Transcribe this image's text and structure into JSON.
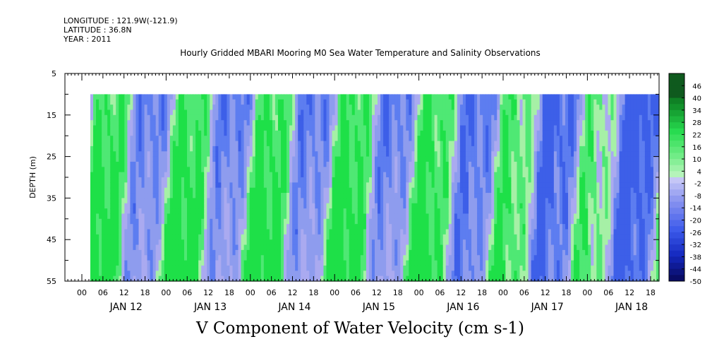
{
  "header": {
    "longitude": "LONGITUDE : 121.9W(-121.9)",
    "latitude": "LATITUDE : 36.8N",
    "year": "YEAR : 2011",
    "title": "Hourly Gridded MBARI Mooring M0 Sea Water Temperature and Salinity Observations"
  },
  "chart_data": {
    "type": "heatmap",
    "title": "Hourly Gridded MBARI Mooring M0 Sea Water Temperature and Salinity Observations",
    "bottom_title": "V Component of Water Velocity (cm s-1)",
    "ylabel": "DEPTH (m)",
    "yticks": [
      "5",
      "15",
      "25",
      "35",
      "45",
      "55"
    ],
    "ylim": [
      55,
      5
    ],
    "hour_ticks": [
      "00",
      "06",
      "12",
      "18",
      "00",
      "06",
      "12",
      "18",
      "00",
      "06",
      "12",
      "18",
      "00",
      "06",
      "12",
      "18",
      "00",
      "06",
      "12",
      "18",
      "00",
      "06",
      "12",
      "18",
      "00",
      "06",
      "12",
      "18"
    ],
    "day_labels": [
      "JAN 12",
      "JAN 13",
      "JAN 14",
      "JAN 15",
      "JAN 16",
      "JAN 17",
      "JAN 18"
    ],
    "data_depth_top": 10,
    "colorbar_labels": [
      "46",
      "40",
      "34",
      "28",
      "22",
      "16",
      "10",
      "4",
      "-2",
      "-8",
      "-14",
      "-20",
      "-26",
      "-32",
      "-38",
      "-44",
      "-50"
    ],
    "colorbar_range": [
      -50,
      52
    ],
    "palette": {
      "strong_positive": "#0a3a12",
      "positive": "#22dd44",
      "weak_positive": "#a8f0a8",
      "weak_negative": "#a9a9ee",
      "negative": "#4466ee",
      "strong_negative": "#0a0a66"
    }
  }
}
